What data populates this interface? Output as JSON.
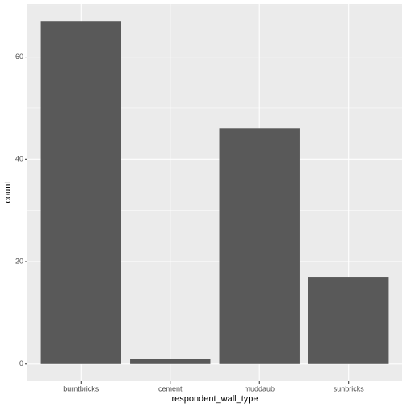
{
  "chart_data": {
    "type": "bar",
    "x_label": "respondent_wall_type",
    "y_label": "count",
    "categories": [
      "burntbricks",
      "cement",
      "muddaub",
      "sunbricks"
    ],
    "values": [
      67,
      1,
      46,
      17
    ],
    "color": "#595959",
    "ylim": [
      -3.35,
      70.35
    ],
    "yticks": [
      0,
      20,
      40,
      60
    ],
    "grid": true,
    "minor_grid": true
  }
}
